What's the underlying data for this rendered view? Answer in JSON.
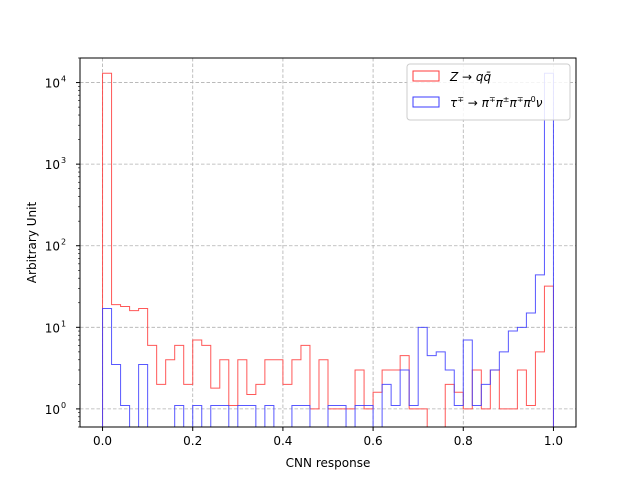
{
  "chart_data": {
    "type": "histogram-step",
    "xlabel": "CNN response",
    "ylabel": "Arbitrary Unit",
    "xlim": [
      -0.05,
      1.05
    ],
    "ylim": [
      0.6,
      20000
    ],
    "yscale": "log",
    "grid": true,
    "legend_position": "top-right",
    "x_ticks": [
      0.0,
      0.2,
      0.4,
      0.6,
      0.8,
      1.0
    ],
    "x_tick_labels": [
      "0.0",
      "0.2",
      "0.4",
      "0.6",
      "0.8",
      "1.0"
    ],
    "y_ticks": [
      1,
      10,
      100,
      1000,
      10000
    ],
    "y_tick_labels": [
      {
        "base": "10",
        "exp": "0"
      },
      {
        "base": "10",
        "exp": "1"
      },
      {
        "base": "10",
        "exp": "2"
      },
      {
        "base": "10",
        "exp": "3"
      },
      {
        "base": "10",
        "exp": "4"
      }
    ],
    "bin_edges_start": 0.0,
    "bin_width": 0.02,
    "series": [
      {
        "name": "Z → qq̄",
        "color": "#ff3b3b",
        "values": [
          13000,
          19,
          18,
          16,
          17,
          6,
          2,
          4,
          6,
          2,
          7,
          6,
          1.8,
          4,
          1.1,
          4,
          1.5,
          2,
          4,
          4,
          2,
          4,
          6,
          1,
          4,
          1,
          1,
          1,
          3,
          1,
          1.6,
          3,
          3,
          4.5,
          1,
          1,
          0.6,
          0.6,
          2,
          1.6,
          1,
          3,
          1,
          3,
          1,
          1,
          3,
          1.1,
          5,
          32
        ]
      },
      {
        "name": "τ∓ → π∓π±π∓π⁰ν",
        "color": "#3b3bff",
        "values": [
          17,
          3.5,
          1.1,
          0.6,
          3.5,
          0.6,
          0.6,
          0.6,
          1.1,
          0.6,
          1.1,
          0.6,
          1.1,
          1.1,
          0.6,
          1.1,
          1.1,
          0.6,
          1.1,
          0.6,
          0.6,
          1.1,
          1.1,
          0.6,
          0.6,
          1.1,
          1.1,
          0.6,
          1.1,
          1.1,
          0.6,
          2,
          1.1,
          3,
          1.1,
          10,
          4.5,
          5,
          3,
          1.1,
          7,
          1.1,
          2,
          3,
          5,
          9,
          10,
          15,
          44,
          13000
        ]
      }
    ],
    "legend": {
      "entries": [
        {
          "label_main": "Z → q",
          "label_sub": "",
          "tex": "Z → qq̄"
        },
        {
          "label_main": "τ∓ → π∓π±π∓π⁰ν",
          "label_sub": "",
          "tex": "τ∓ → π∓π±π∓π⁰ν"
        }
      ]
    }
  }
}
